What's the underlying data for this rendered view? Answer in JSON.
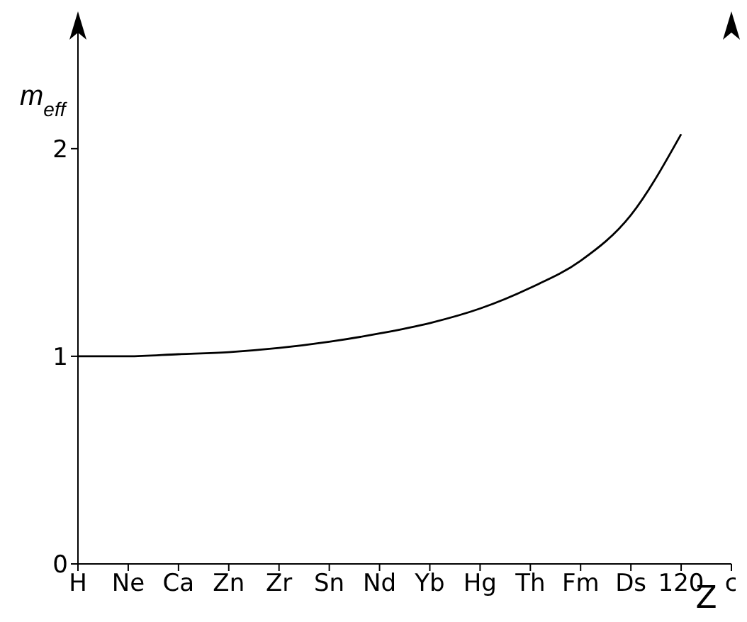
{
  "chart_data": {
    "type": "line",
    "xlabel": "Z",
    "ylabel": "m$_{eff}$",
    "categories": [
      "H",
      "Ne",
      "Ca",
      "Zn",
      "Zr",
      "Sn",
      "Nd",
      "Yb",
      "Hg",
      "Th",
      "Fm",
      "Ds",
      "120",
      "c"
    ],
    "series": [
      {
        "color": "#000000",
        "values": [
          1.0,
          1.0,
          1.01,
          1.02,
          1.04,
          1.07,
          1.11,
          1.16,
          1.23,
          1.33,
          1.46,
          1.68,
          2.07,
          null
        ]
      }
    ],
    "ylim": [
      0,
      2.6
    ],
    "yticks": [
      0,
      1,
      2
    ],
    "marker": "none",
    "line_style": "solid",
    "grid": false,
    "legend": false
  }
}
